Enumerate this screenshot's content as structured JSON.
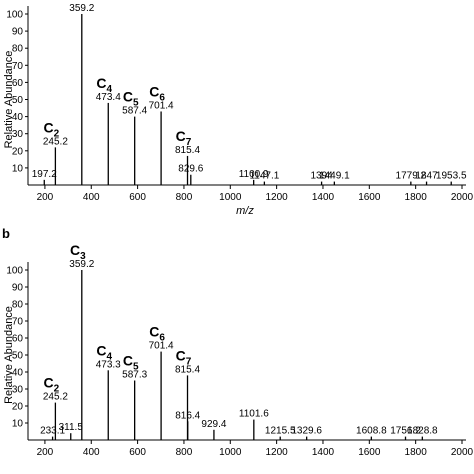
{
  "chart_data": [
    {
      "type": "bar",
      "ylabel": "Relative Abundance",
      "xlabel": "m/z",
      "x": [
        197.2,
        245.2,
        359.2,
        473.4,
        587.4,
        701.4,
        815.4,
        829.6,
        1100.9,
        1147.1,
        1394.0,
        1449.1,
        1779.2,
        1847.0,
        1953.5
      ],
      "values": [
        3,
        22,
        100,
        48,
        40,
        43,
        17,
        6,
        3,
        2,
        2,
        2,
        2,
        2,
        2
      ],
      "ion_labels": [
        null,
        "C2",
        null,
        "C4",
        "C5",
        "C6",
        "C7",
        null,
        null,
        null,
        null,
        null,
        null,
        null,
        null
      ],
      "color": "#000000",
      "xlim": [
        127,
        2000
      ],
      "xticks": [
        200,
        400,
        600,
        800,
        1000,
        1200,
        1400,
        1600,
        1800,
        2000
      ],
      "ylim": [
        0,
        100
      ],
      "yticks": [
        10,
        20,
        30,
        40,
        50,
        60,
        70,
        80,
        90,
        100
      ]
    },
    {
      "type": "bar",
      "ylabel": "Relative Abundance",
      "panel_label": "b",
      "x": [
        233.1,
        245.2,
        311.5,
        359.2,
        473.3,
        587.3,
        701.4,
        815.4,
        816.4,
        929.4,
        1101.6,
        1215.5,
        1329.6,
        1608.8,
        1756.2,
        1828.8
      ],
      "values": [
        2,
        22,
        4,
        100,
        41,
        35,
        52,
        38,
        11,
        6,
        12,
        2,
        2,
        2,
        2,
        2
      ],
      "ion_labels": [
        null,
        "C2",
        null,
        "C3",
        "C4",
        "C5",
        "C6",
        "C7",
        null,
        null,
        null,
        null,
        null,
        null,
        null,
        null
      ],
      "color": "#000000",
      "xlim": [
        127,
        2000
      ],
      "xticks": [
        200,
        400,
        600,
        800,
        1000,
        1200,
        1400,
        1600,
        1800,
        2000
      ],
      "ylim": [
        0,
        100
      ],
      "yticks": [
        10,
        20,
        30,
        40,
        50,
        60,
        70,
        80,
        90,
        100
      ]
    }
  ]
}
